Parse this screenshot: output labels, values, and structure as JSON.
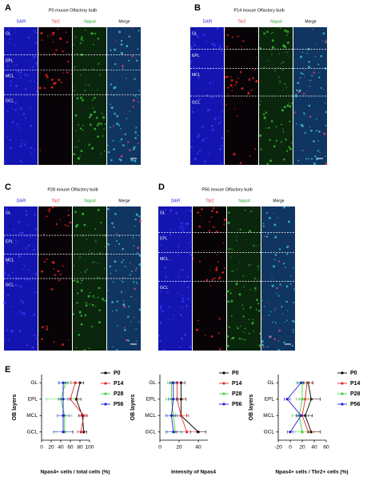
{
  "figure": {
    "panels": [
      {
        "label": "A",
        "title": "P0 mouse Olfactory bulb",
        "channels": [
          "DAPI",
          "Tbr2",
          "Naps4",
          "Merge"
        ],
        "layers": [
          "GL",
          "EPL",
          "MCL",
          "GCL"
        ]
      },
      {
        "label": "B",
        "title": "P14 mouse Olfactory bulb",
        "channels": [
          "DAPI",
          "Tbr2",
          "Naps4",
          "Merge"
        ],
        "layers": [
          "GL",
          "EPL",
          "MCL",
          "GCL"
        ]
      },
      {
        "label": "C",
        "title": "P28 mouse Olfactory bulb",
        "channels": [
          "DAPI",
          "Tbr2",
          "Naps4",
          "Merge"
        ],
        "layers": [
          "GL",
          "EPL",
          "MCL",
          "GCL"
        ]
      },
      {
        "label": "D",
        "title": "P56 mouse Olfactory bulb",
        "channels": [
          "DAPI",
          "Tbr2",
          "Naps4",
          "Merge"
        ],
        "layers": [
          "GL",
          "EPL",
          "MCL",
          "GCL"
        ]
      }
    ],
    "chart_label": "E"
  },
  "chart_data": [
    {
      "type": "line",
      "x_label": "Npas4+ cells / total cells (%)",
      "y_label": "OB layers",
      "categories": [
        "GL",
        "EPL",
        "MCL",
        "GCL"
      ],
      "xlim": [
        0,
        100
      ],
      "xticks": [
        0,
        20,
        40,
        60,
        80,
        100
      ],
      "series": [
        {
          "name": "P0",
          "color": "#000000",
          "values": [
            80,
            72,
            85,
            88
          ],
          "errors": [
            8,
            10,
            8,
            6
          ]
        },
        {
          "name": "P14",
          "color": "#e8282b",
          "values": [
            70,
            60,
            88,
            82
          ],
          "errors": [
            10,
            15,
            8,
            8
          ]
        },
        {
          "name": "P28",
          "color": "#3ed43e",
          "values": [
            50,
            40,
            48,
            48
          ],
          "errors": [
            12,
            30,
            15,
            18
          ]
        },
        {
          "name": "P56",
          "color": "#2020d0",
          "values": [
            45,
            45,
            45,
            45
          ],
          "errors": [
            10,
            10,
            12,
            20
          ]
        }
      ]
    },
    {
      "type": "line",
      "x_label": "Intensity of Npas4",
      "y_label": "OB layers",
      "categories": [
        "GL",
        "EPL",
        "MCL",
        "GCL"
      ],
      "xlim": [
        0,
        50
      ],
      "xticks": [
        0,
        20,
        40
      ],
      "series": [
        {
          "name": "P0",
          "color": "#000000",
          "values": [
            22,
            22,
            22,
            40
          ],
          "errors": [
            4,
            5,
            6,
            8
          ]
        },
        {
          "name": "P14",
          "color": "#e8282b",
          "values": [
            18,
            18,
            22,
            28
          ],
          "errors": [
            5,
            6,
            8,
            10
          ]
        },
        {
          "name": "P28",
          "color": "#3ed43e",
          "values": [
            12,
            12,
            14,
            16
          ],
          "errors": [
            4,
            6,
            6,
            8
          ]
        },
        {
          "name": "P56",
          "color": "#2020d0",
          "values": [
            14,
            14,
            12,
            14
          ],
          "errors": [
            4,
            5,
            6,
            8
          ]
        }
      ]
    },
    {
      "type": "line",
      "x_label": "Npas4+ cells / Tbr2+ cells (%)",
      "y_label": "OB layers",
      "categories": [
        "GL",
        "EPL",
        "MCL",
        "GCL"
      ],
      "xlim": [
        -20,
        60
      ],
      "xticks": [
        -20,
        0,
        20,
        40,
        60
      ],
      "series": [
        {
          "name": "P0",
          "color": "#000000",
          "values": [
            30,
            35,
            25,
            35
          ],
          "errors": [
            8,
            15,
            12,
            15
          ]
        },
        {
          "name": "P14",
          "color": "#e8282b",
          "values": [
            28,
            25,
            20,
            30
          ],
          "errors": [
            8,
            10,
            10,
            10
          ]
        },
        {
          "name": "P28",
          "color": "#3ed43e",
          "values": [
            20,
            20,
            15,
            20
          ],
          "errors": [
            10,
            10,
            12,
            12
          ]
        },
        {
          "name": "P56",
          "color": "#2020d0",
          "values": [
            18,
            -5,
            18,
            0
          ],
          "errors": [
            5,
            5,
            8,
            5
          ]
        }
      ]
    }
  ]
}
